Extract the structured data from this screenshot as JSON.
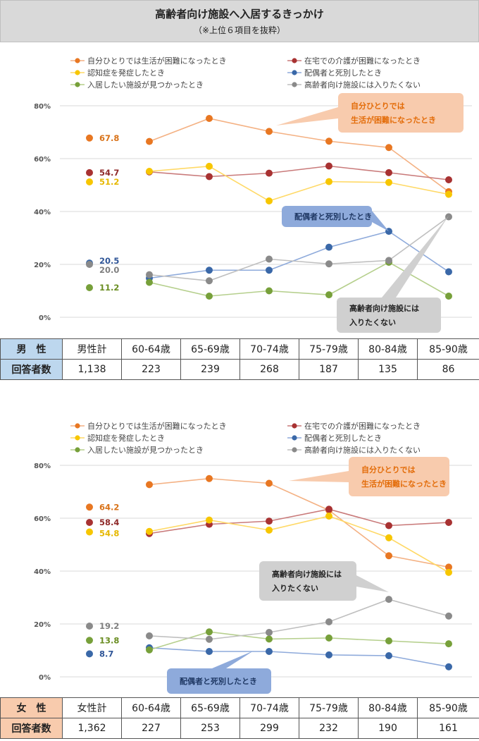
{
  "title": "高齢者向け施設へ入居するきっかけ",
  "subtitle": "（※上位６項目を抜粋）",
  "y_ticks": [
    "80%",
    "60%",
    "40%",
    "20%",
    "0%"
  ],
  "legend": [
    {
      "label": "自分ひとりでは生活が困難になったとき",
      "color": "#e87722"
    },
    {
      "label": "在宅での介護が困難になったとき",
      "color": "#a83232"
    },
    {
      "label": "認知症を発症したとき",
      "color": "#f7c600"
    },
    {
      "label": "配偶者と死別したとき",
      "color": "#3a68a8"
    },
    {
      "label": "入居したい施設が見つかったとき",
      "color": "#77a03a"
    },
    {
      "label": "高齢者向け施設には入りたくない",
      "color": "#8a8a8a"
    }
  ],
  "series_colors": {
    "self": "#e87722",
    "care": "#a83232",
    "dementia": "#f7c600",
    "spouse": "#3a68a8",
    "found": "#77a03a",
    "nowant": "#8a8a8a"
  },
  "line_colors": {
    "self": "#f4b183",
    "care": "#c97a7a",
    "dementia": "#ffd966",
    "spouse": "#8eaadb",
    "found": "#b5cf8c",
    "nowant": "#bfbfbf"
  },
  "label_colors": {
    "self": "#d9731a",
    "care": "#8f2a2a",
    "dementia": "#e6b800",
    "spouse": "#2f5597",
    "found": "#6b8e23",
    "nowant": "#7f7f7f"
  },
  "chart_data": [
    {
      "type": "line",
      "name": "男性",
      "x": [
        "60-64歳",
        "65-69歳",
        "70-74歳",
        "75-79歳",
        "80-84歳",
        "85-90歳"
      ],
      "ylim": [
        0,
        80
      ],
      "series": [
        {
          "key": "self",
          "name": "自分ひとりでは生活が困難になったとき",
          "total": 67.8,
          "total_label": "67.8",
          "values": [
            66.5,
            75.2,
            70.3,
            66.6,
            64.2,
            47.5
          ]
        },
        {
          "key": "care",
          "name": "在宅での介護が困難になったとき",
          "total": 54.7,
          "total_label": "54.7",
          "values": [
            55.0,
            53.2,
            54.5,
            57.2,
            54.7,
            52.0
          ]
        },
        {
          "key": "dementia",
          "name": "認知症を発症したとき",
          "total": 51.2,
          "total_label": "51.2",
          "values": [
            55.2,
            57.1,
            44.0,
            51.3,
            51.0,
            46.5
          ]
        },
        {
          "key": "spouse",
          "name": "配偶者と死別したとき",
          "total": 20.5,
          "total_label": "20.5",
          "values": [
            14.8,
            17.8,
            17.8,
            26.5,
            32.5,
            17.2
          ]
        },
        {
          "key": "found",
          "name": "入居したい施設が見つかったとき",
          "total": 11.2,
          "total_label": "11.2",
          "values": [
            13.2,
            8.0,
            10.0,
            8.5,
            20.8,
            8.0
          ]
        },
        {
          "key": "nowant",
          "name": "高齢者向け施設には入りたくない",
          "total": 20.0,
          "total_label": "20.0",
          "values": [
            16.1,
            13.8,
            22.0,
            20.2,
            21.5,
            38.0
          ]
        }
      ],
      "callouts": [
        {
          "key": "self",
          "lines": [
            "自分ひとりでは",
            "生活が困難になったとき"
          ]
        },
        {
          "key": "spouse",
          "lines": [
            "配偶者と死別したとき"
          ]
        },
        {
          "key": "nowant",
          "lines": [
            "高齢者向け施設には",
            "入りたくない"
          ]
        }
      ]
    },
    {
      "type": "line",
      "name": "女性",
      "x": [
        "60-64歳",
        "65-69歳",
        "70-74歳",
        "75-79歳",
        "80-84歳",
        "85-90歳"
      ],
      "ylim": [
        0,
        80
      ],
      "series": [
        {
          "key": "self",
          "name": "自分ひとりでは生活が困難になったとき",
          "total": 64.2,
          "total_label": "64.2",
          "values": [
            72.7,
            75.0,
            73.2,
            63.0,
            45.8,
            41.5
          ]
        },
        {
          "key": "care",
          "name": "在宅での介護が困難になったとき",
          "total": 58.4,
          "total_label": "58.4",
          "values": [
            54.2,
            57.7,
            58.9,
            63.4,
            57.2,
            58.4
          ]
        },
        {
          "key": "dementia",
          "name": "認知症を発症したとき",
          "total": 54.8,
          "total_label": "54.8",
          "values": [
            55.0,
            59.3,
            55.5,
            60.8,
            52.6,
            39.5
          ]
        },
        {
          "key": "spouse",
          "name": "配偶者と死別したとき",
          "total": 8.7,
          "total_label": "8.7",
          "values": [
            11.0,
            9.6,
            9.6,
            8.3,
            8.0,
            3.8
          ]
        },
        {
          "key": "found",
          "name": "入居したい施設が見つかったとき",
          "total": 13.8,
          "total_label": "13.8",
          "values": [
            10.2,
            17.0,
            14.3,
            14.7,
            13.6,
            12.5
          ]
        },
        {
          "key": "nowant",
          "name": "高齢者向け施設には入りたくない",
          "total": 19.2,
          "total_label": "19.2",
          "values": [
            15.5,
            14.2,
            16.8,
            20.8,
            29.3,
            23.0
          ]
        }
      ],
      "callouts": [
        {
          "key": "self",
          "lines": [
            "自分ひとりでは",
            "生活が困難になったとき"
          ]
        },
        {
          "key": "nowant",
          "lines": [
            "高齢者向け施設には",
            "入りたくない"
          ]
        },
        {
          "key": "spouse",
          "lines": [
            "配偶者と死別したとき"
          ]
        }
      ]
    }
  ],
  "tables": [
    {
      "gender_label": "男　性",
      "total_label": "男性計",
      "age_groups": [
        "60-64歳",
        "65-69歳",
        "70-74歳",
        "75-79歳",
        "80-84歳",
        "85-90歳"
      ],
      "respondents_label": "回答者数",
      "respondents": [
        "1,138",
        "223",
        "239",
        "268",
        "187",
        "135",
        "86"
      ]
    },
    {
      "gender_label": "女　性",
      "total_label": "女性計",
      "age_groups": [
        "60-64歳",
        "65-69歳",
        "70-74歳",
        "75-79歳",
        "80-84歳",
        "85-90歳"
      ],
      "respondents_label": "回答者数",
      "respondents": [
        "1,362",
        "227",
        "253",
        "299",
        "232",
        "190",
        "161"
      ]
    }
  ]
}
